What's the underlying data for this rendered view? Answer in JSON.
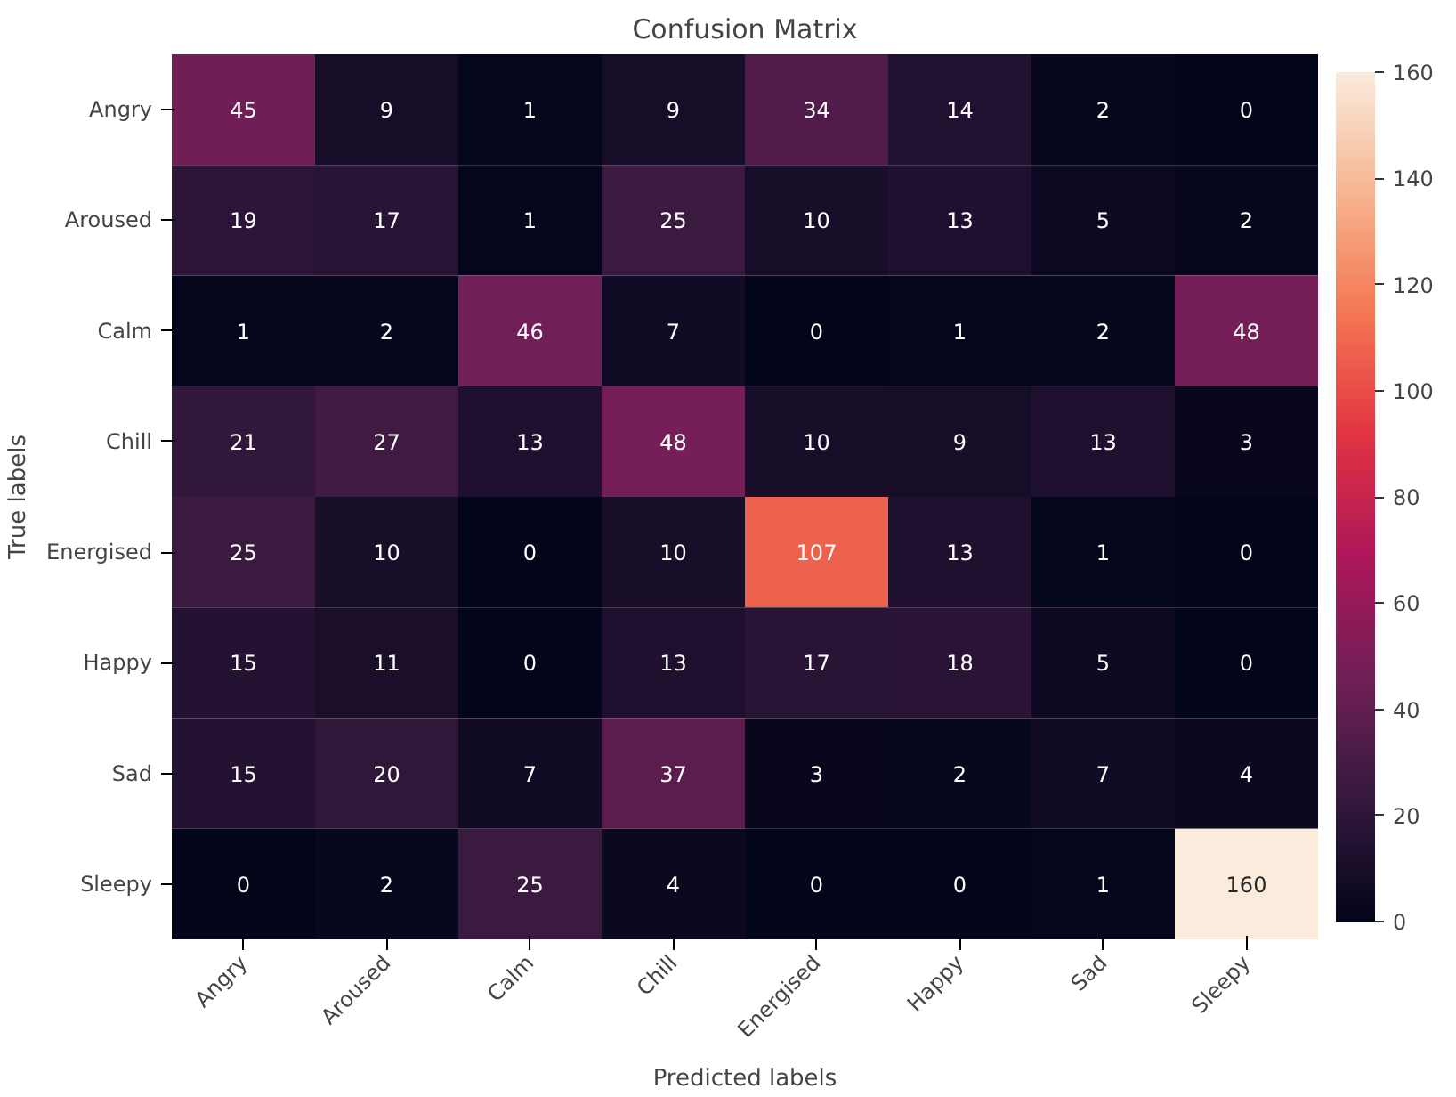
{
  "chart_data": {
    "type": "heatmap",
    "title": "Confusion Matrix",
    "xlabel": "Predicted labels",
    "ylabel": "True labels",
    "categories": [
      "Angry",
      "Aroused",
      "Calm",
      "Chill",
      "Energised",
      "Happy",
      "Sad",
      "Sleepy"
    ],
    "y_categories": [
      "Angry",
      "Aroused",
      "Calm",
      "Chill",
      "Energised",
      "Happy",
      "Sad",
      "Sleepy"
    ],
    "cells": [
      [
        45,
        9,
        1,
        9,
        34,
        14,
        2,
        0
      ],
      [
        19,
        17,
        1,
        25,
        10,
        13,
        5,
        2
      ],
      [
        1,
        2,
        46,
        7,
        0,
        1,
        2,
        48
      ],
      [
        21,
        27,
        13,
        48,
        10,
        9,
        13,
        3
      ],
      [
        25,
        10,
        0,
        10,
        107,
        13,
        1,
        0
      ],
      [
        15,
        11,
        0,
        13,
        17,
        18,
        5,
        0
      ],
      [
        15,
        20,
        7,
        37,
        3,
        2,
        7,
        4
      ],
      [
        0,
        2,
        25,
        4,
        0,
        0,
        1,
        160
      ]
    ],
    "data_labels": true,
    "clim": [
      0,
      160
    ],
    "cticks": [
      0,
      20,
      40,
      60,
      80,
      100,
      120,
      140,
      160
    ]
  }
}
